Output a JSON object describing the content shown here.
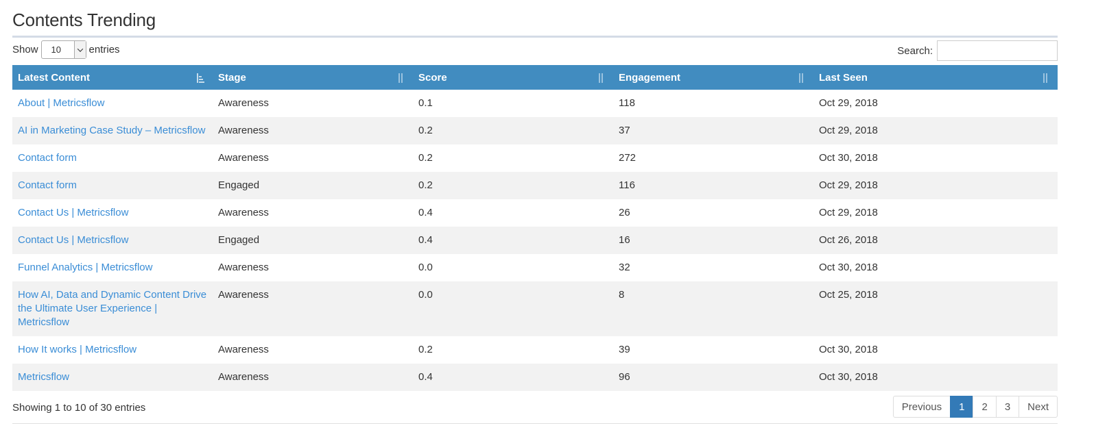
{
  "page": {
    "title": "Contents Trending"
  },
  "controls": {
    "show_label": "Show",
    "page_size": "10",
    "entries_label": "entries",
    "search_label": "Search:",
    "search_value": ""
  },
  "table": {
    "columns": [
      "Latest Content",
      "Stage",
      "Score",
      "Engagement",
      "Last Seen"
    ],
    "rows": [
      {
        "content": "About | Metricsflow",
        "stage": "Awareness",
        "score": "0.1",
        "engagement": "118",
        "last_seen": "Oct 29, 2018"
      },
      {
        "content": "AI in Marketing Case Study – Metricsflow",
        "stage": "Awareness",
        "score": "0.2",
        "engagement": "37",
        "last_seen": "Oct 29, 2018"
      },
      {
        "content": "Contact form",
        "stage": "Awareness",
        "score": "0.2",
        "engagement": "272",
        "last_seen": "Oct 30, 2018"
      },
      {
        "content": "Contact form",
        "stage": "Engaged",
        "score": "0.2",
        "engagement": "116",
        "last_seen": "Oct 29, 2018"
      },
      {
        "content": "Contact Us | Metricsflow",
        "stage": "Awareness",
        "score": "0.4",
        "engagement": "26",
        "last_seen": "Oct 29, 2018"
      },
      {
        "content": "Contact Us | Metricsflow",
        "stage": "Engaged",
        "score": "0.4",
        "engagement": "16",
        "last_seen": "Oct 26, 2018"
      },
      {
        "content": "Funnel Analytics | Metricsflow",
        "stage": "Awareness",
        "score": "0.0",
        "engagement": "32",
        "last_seen": "Oct 30, 2018"
      },
      {
        "content": "How AI, Data and Dynamic Content Drive the Ultimate User Experience | Metricsflow",
        "stage": "Awareness",
        "score": "0.0",
        "engagement": "8",
        "last_seen": "Oct 25, 2018"
      },
      {
        "content": "How It works | Metricsflow",
        "stage": "Awareness",
        "score": "0.2",
        "engagement": "39",
        "last_seen": "Oct 30, 2018"
      },
      {
        "content": "Metricsflow",
        "stage": "Awareness",
        "score": "0.4",
        "engagement": "96",
        "last_seen": "Oct 30, 2018"
      }
    ]
  },
  "footer": {
    "info": "Showing 1 to 10 of 30 entries",
    "previous_label": "Previous",
    "pages": [
      "1",
      "2",
      "3"
    ],
    "active_page": "1",
    "next_label": "Next"
  },
  "colors": {
    "header_bg": "#418cc0",
    "link": "#3a8dd6",
    "stripe": "#f2f2f2",
    "active_page": "#337ab7"
  },
  "icons": {
    "sort_active": "sort-ascending-icon",
    "sort_both": "sort-both-icon",
    "select_caret": "chevron-down-icon"
  }
}
